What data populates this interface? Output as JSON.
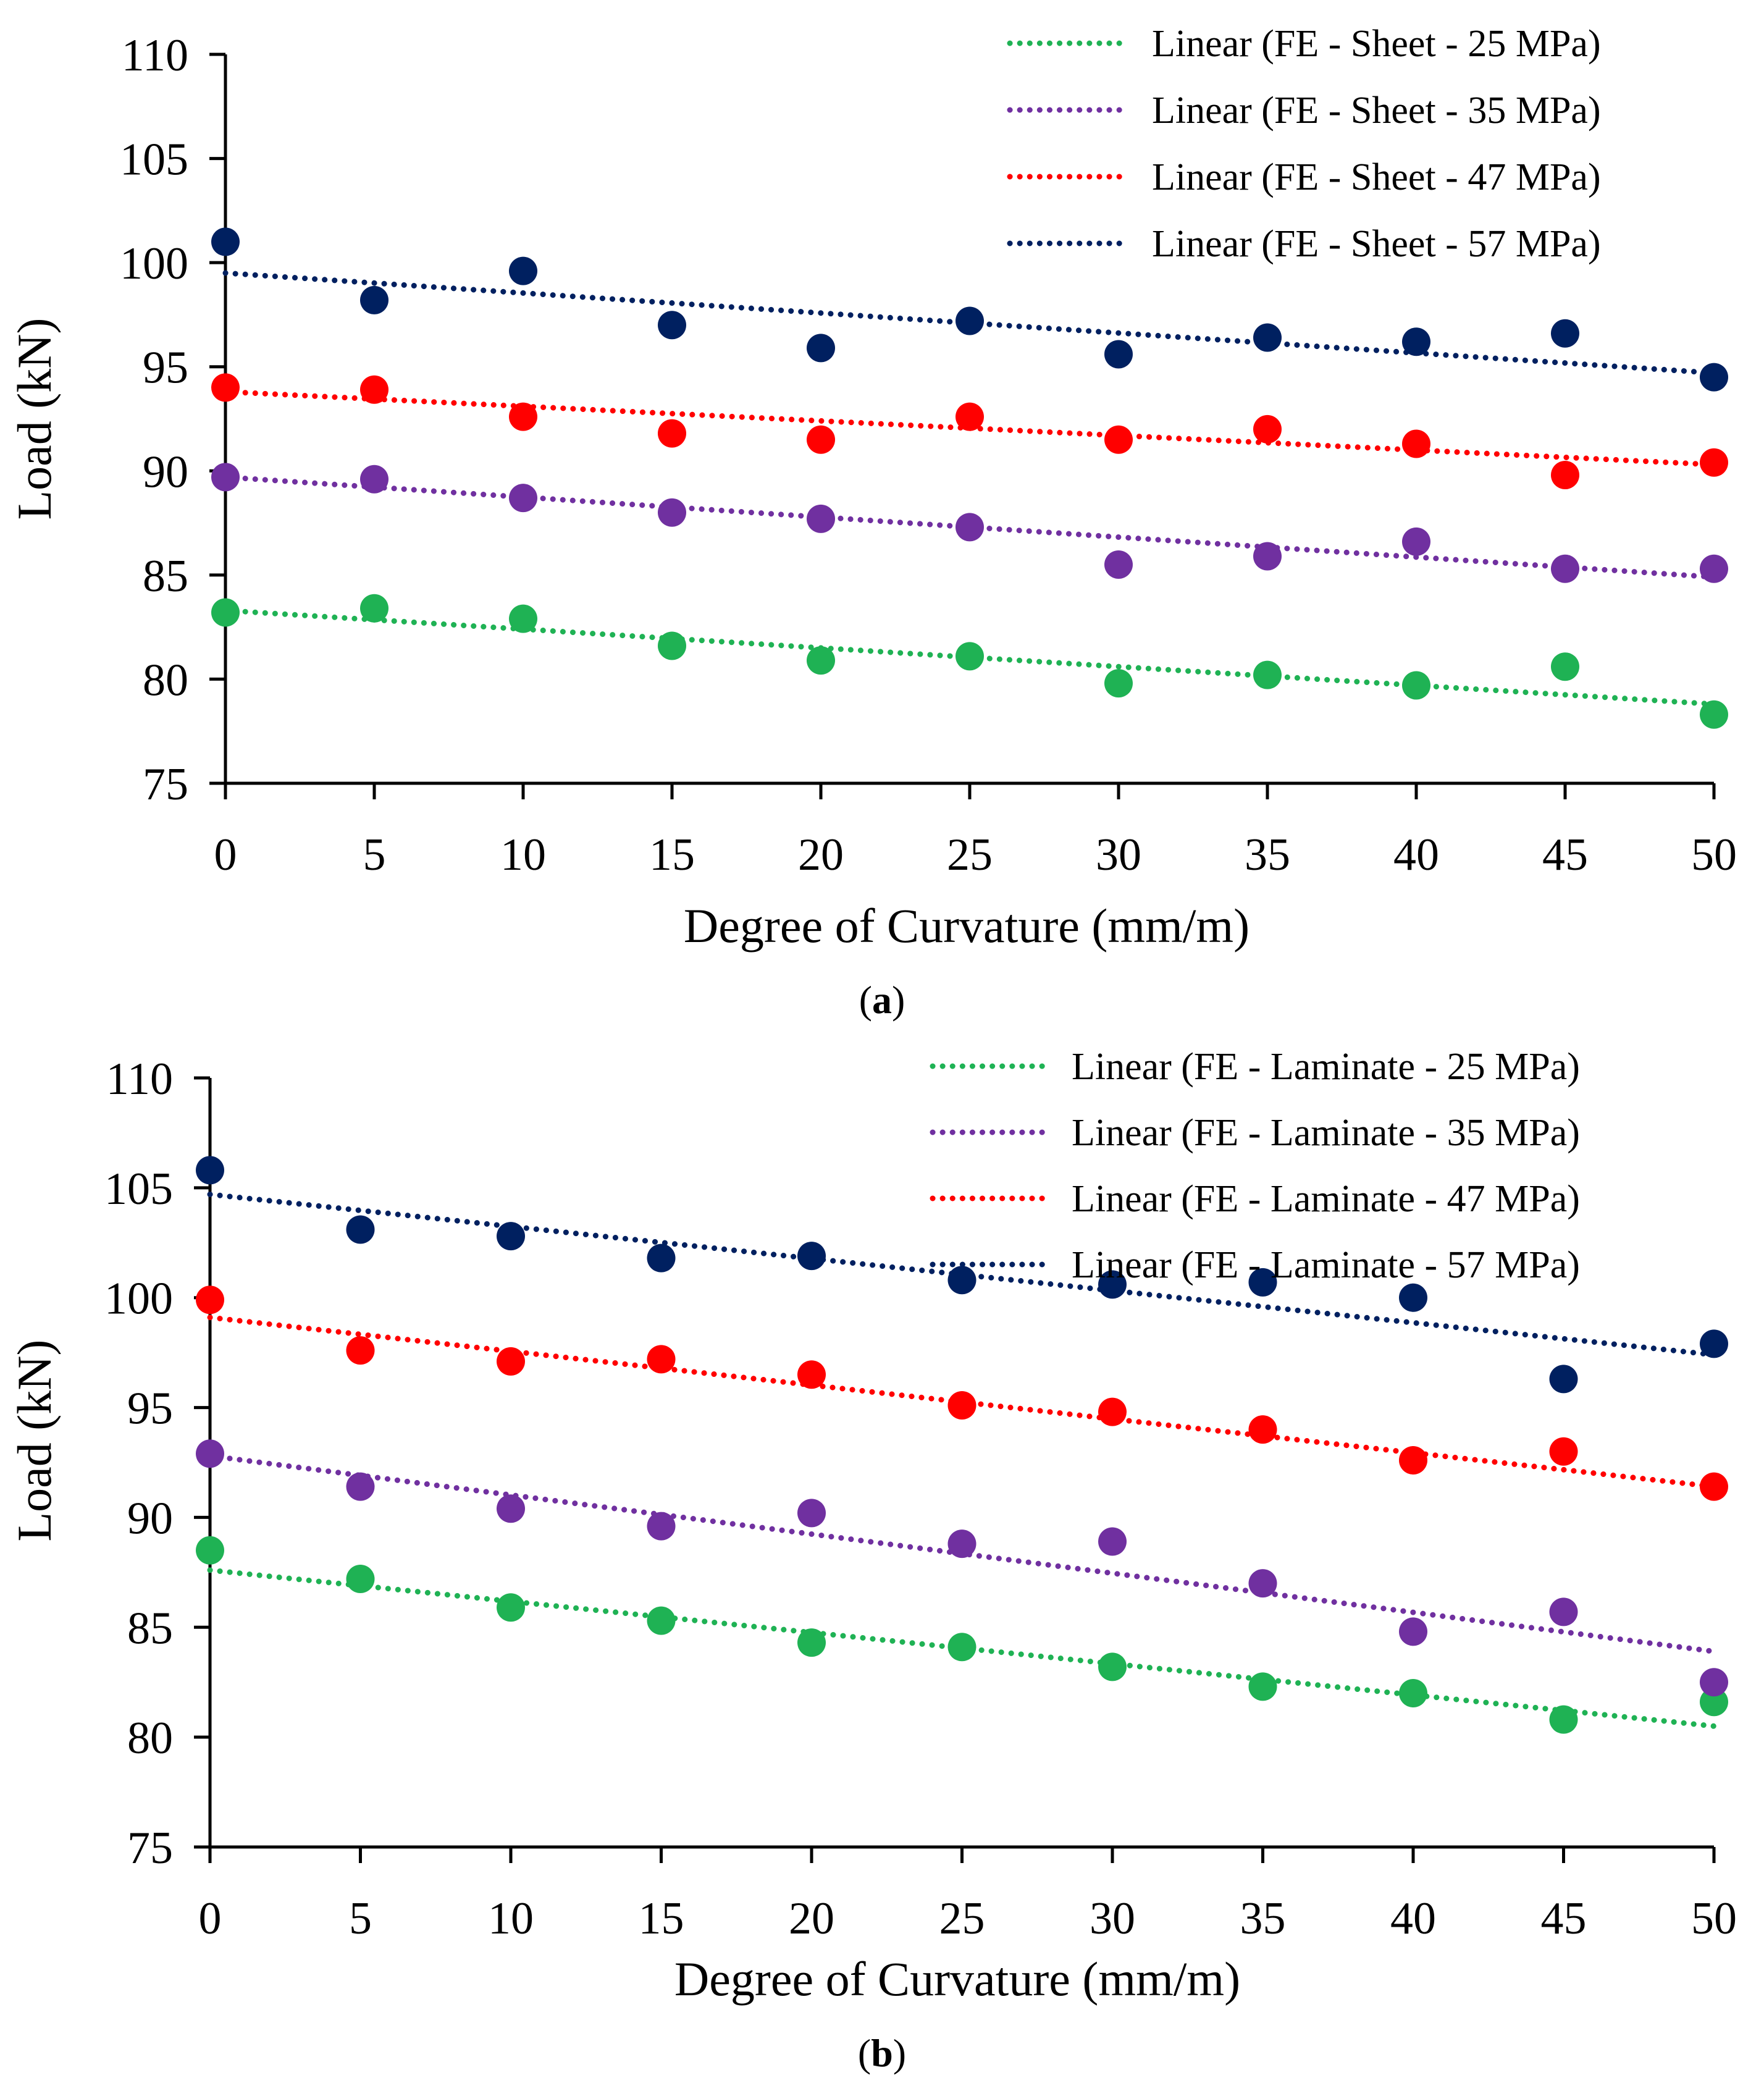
{
  "figure": {
    "panels": [
      {
        "caption_open": "(",
        "caption_letter": "a",
        "caption_close": ")"
      },
      {
        "caption_open": "(",
        "caption_letter": "b",
        "caption_close": ")"
      }
    ]
  },
  "chart_data": [
    {
      "type": "scatter",
      "title": "",
      "xlabel": "Degree of Curvature (mm/m)",
      "ylabel": "Load (kN)",
      "xlim": [
        0,
        50
      ],
      "ylim": [
        75,
        110
      ],
      "xticks": [
        0,
        5,
        10,
        15,
        20,
        25,
        30,
        35,
        40,
        45,
        50
      ],
      "yticks": [
        75,
        80,
        85,
        90,
        95,
        100,
        105,
        110
      ],
      "legend_position": "top-right",
      "grid": false,
      "x": [
        0,
        5,
        10,
        15,
        20,
        25,
        30,
        35,
        40,
        45,
        50
      ],
      "series": [
        {
          "name": "Linear (FE - Sheet - 25 MPa)",
          "color": "#1fb254",
          "values": [
            83.2,
            83.4,
            82.9,
            81.6,
            80.9,
            81.1,
            79.8,
            80.2,
            79.7,
            80.6,
            78.3
          ],
          "trend": [
            83.3,
            78.8
          ]
        },
        {
          "name": "Linear (FE - Sheet - 35 MPa)",
          "color": "#7030a0",
          "values": [
            89.7,
            89.6,
            88.7,
            88.0,
            87.7,
            87.3,
            85.5,
            85.9,
            86.6,
            85.3,
            85.3
          ],
          "trend": [
            89.7,
            84.9
          ]
        },
        {
          "name": "Linear (FE - Sheet - 47 MPa)",
          "color": "#ff0000",
          "values": [
            94.0,
            93.9,
            92.6,
            91.8,
            91.5,
            92.6,
            91.5,
            92.0,
            91.3,
            89.8,
            90.4
          ],
          "trend": [
            93.8,
            90.3
          ]
        },
        {
          "name": "Linear (FE - Sheet - 57 MPa)",
          "color": "#002060",
          "values": [
            101.0,
            98.2,
            99.6,
            97.0,
            95.9,
            97.2,
            95.6,
            96.4,
            96.2,
            96.6,
            94.5
          ],
          "trend": [
            99.5,
            94.7
          ]
        }
      ]
    },
    {
      "type": "scatter",
      "title": "",
      "xlabel": "Degree of Curvature (mm/m)",
      "ylabel": "Load (kN)",
      "xlim": [
        0,
        50
      ],
      "ylim": [
        75,
        110
      ],
      "xticks": [
        0,
        5,
        10,
        15,
        20,
        25,
        30,
        35,
        40,
        45,
        50
      ],
      "yticks": [
        75,
        80,
        85,
        90,
        95,
        100,
        105,
        110
      ],
      "legend_position": "top-right",
      "grid": false,
      "x": [
        0,
        5,
        10,
        15,
        20,
        25,
        30,
        35,
        40,
        45,
        50
      ],
      "series": [
        {
          "name": "Linear (FE - Laminate - 25 MPa)",
          "color": "#1fb254",
          "values": [
            88.5,
            87.2,
            85.9,
            85.3,
            84.3,
            84.1,
            83.2,
            82.3,
            82.0,
            80.8,
            81.6
          ],
          "trend": [
            87.6,
            80.5
          ]
        },
        {
          "name": "Linear (FE - Laminate - 35 MPa)",
          "color": "#7030a0",
          "values": [
            92.9,
            91.4,
            90.4,
            89.6,
            90.2,
            88.8,
            88.9,
            87.0,
            84.8,
            85.7,
            82.5
          ],
          "trend": [
            92.8,
            83.9
          ]
        },
        {
          "name": "Linear (FE - Laminate - 47 MPa)",
          "color": "#ff0000",
          "values": [
            99.9,
            97.6,
            97.1,
            97.2,
            96.5,
            95.1,
            94.8,
            94.0,
            92.6,
            93.0,
            91.4
          ],
          "trend": [
            99.1,
            91.4
          ]
        },
        {
          "name": "Linear (FE - Laminate - 57 MPa)",
          "color": "#002060",
          "values": [
            105.8,
            103.1,
            102.8,
            101.8,
            101.9,
            100.8,
            100.6,
            100.7,
            100.0,
            96.3,
            97.9
          ],
          "trend": [
            104.7,
            97.4
          ]
        }
      ]
    }
  ]
}
